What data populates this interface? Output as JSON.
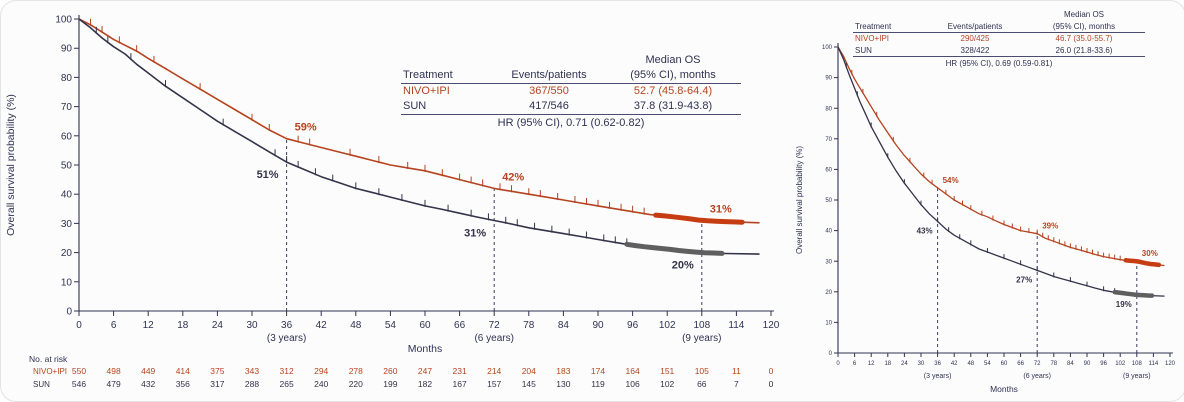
{
  "colors": {
    "nivo": "#b5431f",
    "sun": "#33334a",
    "axis": "#2e3252",
    "dashed": "#3b3e63",
    "nivo_dense": "#c63d12",
    "sun_dense": "#5f5f5f"
  },
  "chart_data": [
    {
      "type": "line",
      "population": "left-panel",
      "xlabel": "Months",
      "ylabel": "Overall survival probability (%)",
      "xlim": [
        0,
        120
      ],
      "ylim": [
        0,
        100
      ],
      "xticks": [
        0,
        6,
        12,
        18,
        24,
        30,
        36,
        42,
        48,
        54,
        60,
        66,
        72,
        78,
        84,
        90,
        96,
        102,
        108,
        114,
        120
      ],
      "yticks": [
        0,
        10,
        20,
        30,
        40,
        50,
        60,
        70,
        80,
        90,
        100
      ],
      "milestones": [
        {
          "month": 36,
          "caption": "(3 years)",
          "labels": [
            "59%",
            "51%"
          ]
        },
        {
          "month": 72,
          "caption": "(6 years)",
          "labels": [
            "42%",
            "31%"
          ]
        },
        {
          "month": 108,
          "caption": "(9 years)",
          "labels": [
            "31%",
            "20%"
          ]
        }
      ],
      "series": [
        {
          "name": "NIVO+IPI",
          "color": "#b5431f",
          "dense_color": "#c63d12",
          "dense_range": [
            100,
            116
          ],
          "points": [
            [
              0,
              100
            ],
            [
              2,
              98
            ],
            [
              4,
              95.5
            ],
            [
              6,
              93
            ],
            [
              8,
              91
            ],
            [
              10,
              89
            ],
            [
              12,
              86.5
            ],
            [
              15,
              83
            ],
            [
              18,
              79.5
            ],
            [
              21,
              76
            ],
            [
              24,
              72.5
            ],
            [
              27,
              69
            ],
            [
              30,
              65.5
            ],
            [
              33,
              62
            ],
            [
              36,
              59
            ],
            [
              39,
              57.5
            ],
            [
              42,
              56
            ],
            [
              45,
              54.5
            ],
            [
              48,
              53
            ],
            [
              51,
              51.5
            ],
            [
              54,
              50
            ],
            [
              57,
              49
            ],
            [
              60,
              48
            ],
            [
              63,
              46.5
            ],
            [
              66,
              45
            ],
            [
              69,
              43.5
            ],
            [
              72,
              42
            ],
            [
              75,
              41
            ],
            [
              78,
              40
            ],
            [
              81,
              39
            ],
            [
              84,
              38
            ],
            [
              87,
              37
            ],
            [
              90,
              36
            ],
            [
              93,
              35
            ],
            [
              96,
              34
            ],
            [
              99,
              33
            ],
            [
              102,
              32.5
            ],
            [
              105,
              31.8
            ],
            [
              108,
              31
            ],
            [
              112,
              30.6
            ],
            [
              118,
              30.2
            ]
          ],
          "censors": [
            2,
            4,
            7,
            10,
            13,
            21,
            30,
            33,
            38,
            40,
            47,
            52,
            57,
            60,
            63,
            66,
            68,
            70,
            73,
            75,
            78,
            80,
            83,
            86,
            88,
            90,
            92,
            94,
            96,
            98
          ]
        },
        {
          "name": "SUN",
          "color": "#33334a",
          "dense_color": "#5f5f5f",
          "dense_range": [
            95,
            112
          ],
          "points": [
            [
              0,
              100
            ],
            [
              2,
              97
            ],
            [
              4,
              93.5
            ],
            [
              6,
              90.5
            ],
            [
              8,
              88
            ],
            [
              10,
              84.5
            ],
            [
              12,
              81.5
            ],
            [
              15,
              77
            ],
            [
              18,
              73
            ],
            [
              21,
              69
            ],
            [
              24,
              65
            ],
            [
              27,
              61.5
            ],
            [
              30,
              58
            ],
            [
              33,
              54.5
            ],
            [
              36,
              51
            ],
            [
              39,
              48.5
            ],
            [
              42,
              46
            ],
            [
              45,
              44
            ],
            [
              48,
              42
            ],
            [
              51,
              40.5
            ],
            [
              54,
              39
            ],
            [
              57,
              37.5
            ],
            [
              60,
              36
            ],
            [
              63,
              34.8
            ],
            [
              66,
              33.5
            ],
            [
              69,
              32.2
            ],
            [
              72,
              31
            ],
            [
              75,
              29.8
            ],
            [
              78,
              28.5
            ],
            [
              81,
              27.5
            ],
            [
              84,
              26.5
            ],
            [
              87,
              25.5
            ],
            [
              90,
              24.5
            ],
            [
              93,
              23.5
            ],
            [
              96,
              22.5
            ],
            [
              99,
              21.8
            ],
            [
              102,
              21.2
            ],
            [
              105,
              20.5
            ],
            [
              108,
              20
            ],
            [
              112,
              19.7
            ],
            [
              118,
              19.5
            ]
          ],
          "censors": [
            3,
            5,
            9,
            15,
            25,
            34,
            36,
            38,
            41,
            44,
            48,
            52,
            56,
            60,
            64,
            68,
            71,
            74,
            76,
            79,
            82,
            85,
            88,
            91,
            93,
            95
          ]
        }
      ],
      "os_table": {
        "header_top": "Median OS",
        "col1": "Treatment",
        "col2": "Events/patients",
        "col3": "(95% CI), months",
        "rows": [
          {
            "treatment": "NIVO+IPI",
            "events": "367/550",
            "median": "52.7 (45.8-64.4)"
          },
          {
            "treatment": "SUN",
            "events": "417/546",
            "median": "37.8 (31.9-43.8)"
          }
        ],
        "hr": "HR (95% CI), 0.71 (0.62-0.82)"
      },
      "at_risk": {
        "label": "No. at risk",
        "rows": [
          {
            "name": "NIVO+IPI",
            "color": "#b5431f",
            "values": [
              550,
              498,
              449,
              414,
              375,
              343,
              312,
              294,
              278,
              260,
              247,
              231,
              214,
              204,
              183,
              174,
              164,
              151,
              105,
              11,
              0
            ]
          },
          {
            "name": "SUN",
            "color": "#33334a",
            "values": [
              546,
              479,
              432,
              356,
              317,
              288,
              265,
              240,
              220,
              199,
              182,
              167,
              157,
              145,
              130,
              119,
              106,
              102,
              66,
              7,
              0
            ]
          }
        ]
      }
    },
    {
      "type": "line",
      "population": "right-panel",
      "xlabel": "Months",
      "ylabel": "Overall survival probability (%)",
      "xlim": [
        0,
        120
      ],
      "ylim": [
        0,
        100
      ],
      "xticks": [
        0,
        6,
        12,
        18,
        24,
        30,
        36,
        42,
        48,
        54,
        60,
        66,
        72,
        78,
        84,
        90,
        96,
        102,
        108,
        114,
        120
      ],
      "yticks": [
        0,
        10,
        20,
        30,
        40,
        50,
        60,
        70,
        80,
        90,
        100
      ],
      "milestones": [
        {
          "month": 36,
          "caption": "(3 years)",
          "labels": [
            "54%",
            "43%"
          ]
        },
        {
          "month": 72,
          "caption": "(6 years)",
          "labels": [
            "39%",
            "27%"
          ]
        },
        {
          "month": 108,
          "caption": "(9 years)",
          "labels": [
            "30%",
            "19%"
          ]
        }
      ],
      "series": [
        {
          "name": "NIVO+IPI",
          "color": "#b5431f",
          "dense_color": "#c63d12",
          "dense_range": [
            104,
            116
          ],
          "points": [
            [
              0,
              100
            ],
            [
              2,
              97
            ],
            [
              4,
              93
            ],
            [
              6,
              89.5
            ],
            [
              8,
              86.5
            ],
            [
              10,
              83.5
            ],
            [
              12,
              80.5
            ],
            [
              15,
              76
            ],
            [
              18,
              72
            ],
            [
              21,
              68
            ],
            [
              24,
              64.5
            ],
            [
              27,
              61.5
            ],
            [
              30,
              58.5
            ],
            [
              33,
              56
            ],
            [
              36,
              54
            ],
            [
              39,
              52
            ],
            [
              42,
              50
            ],
            [
              45,
              48.5
            ],
            [
              48,
              47
            ],
            [
              51,
              45.5
            ],
            [
              54,
              44.5
            ],
            [
              57,
              43.2
            ],
            [
              60,
              42
            ],
            [
              63,
              41
            ],
            [
              66,
              40
            ],
            [
              69,
              39.5
            ],
            [
              72,
              39
            ],
            [
              75,
              37.5
            ],
            [
              78,
              36.5
            ],
            [
              81,
              35.5
            ],
            [
              84,
              34.5
            ],
            [
              87,
              33.8
            ],
            [
              90,
              33
            ],
            [
              93,
              32.2
            ],
            [
              96,
              31.5
            ],
            [
              99,
              31
            ],
            [
              102,
              30.5
            ],
            [
              105,
              30.2
            ],
            [
              108,
              30
            ],
            [
              112,
              29.2
            ],
            [
              118,
              28.6
            ]
          ],
          "censors": [
            5,
            9,
            14,
            20,
            26,
            31,
            34,
            39,
            42,
            45,
            48,
            52,
            56,
            60,
            63,
            66,
            69,
            72,
            74,
            76,
            78,
            80,
            82,
            84,
            86,
            88,
            90,
            92,
            94,
            96,
            98,
            100,
            102
          ]
        },
        {
          "name": "SUN",
          "color": "#33334a",
          "dense_color": "#5f5f5f",
          "dense_range": [
            100,
            114
          ],
          "points": [
            [
              0,
              100
            ],
            [
              2,
              96
            ],
            [
              4,
              91
            ],
            [
              6,
              86.5
            ],
            [
              8,
              82
            ],
            [
              10,
              78
            ],
            [
              12,
              74
            ],
            [
              15,
              69
            ],
            [
              18,
              64
            ],
            [
              21,
              59.5
            ],
            [
              24,
              55.5
            ],
            [
              27,
              52
            ],
            [
              30,
              48.5
            ],
            [
              33,
              45.5
            ],
            [
              36,
              43
            ],
            [
              39,
              40.5
            ],
            [
              42,
              38.5
            ],
            [
              45,
              37
            ],
            [
              48,
              35.5
            ],
            [
              51,
              34
            ],
            [
              54,
              33
            ],
            [
              57,
              32
            ],
            [
              60,
              31
            ],
            [
              63,
              30
            ],
            [
              66,
              29
            ],
            [
              69,
              28
            ],
            [
              72,
              27
            ],
            [
              75,
              26
            ],
            [
              78,
              25
            ],
            [
              81,
              24.2
            ],
            [
              84,
              23.5
            ],
            [
              87,
              22.7
            ],
            [
              90,
              22
            ],
            [
              93,
              21.2
            ],
            [
              96,
              20.5
            ],
            [
              99,
              20
            ],
            [
              102,
              19.7
            ],
            [
              105,
              19.3
            ],
            [
              108,
              19
            ],
            [
              112,
              18.8
            ],
            [
              118,
              18.6
            ]
          ],
          "censors": [
            3,
            7,
            12,
            18,
            24,
            30,
            36,
            40,
            44,
            48,
            54,
            60,
            66,
            72,
            78,
            84,
            90,
            96,
            100
          ]
        }
      ],
      "os_table": {
        "header_top": "Median OS",
        "col1": "Treatment",
        "col2": "Events/patients",
        "col3": "(95% CI), months",
        "rows": [
          {
            "treatment": "NIVO+IPI",
            "events": "290/425",
            "median": "46.7 (35.0-55.7)"
          },
          {
            "treatment": "SUN",
            "events": "328/422",
            "median": "26.0 (21.8-33.6)"
          }
        ],
        "hr": "HR (95% CI), 0.69 (0.59-0.81)"
      }
    }
  ]
}
